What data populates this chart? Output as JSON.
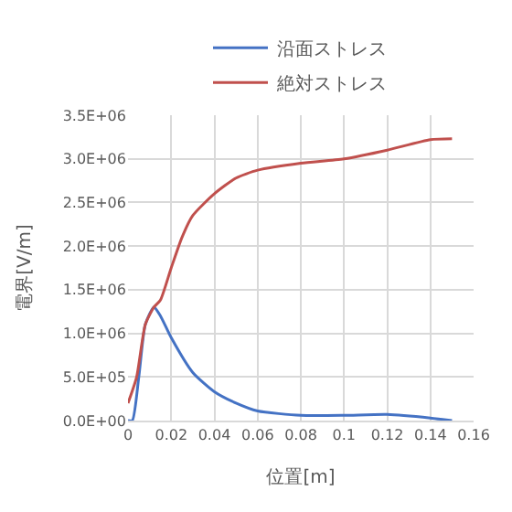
{
  "chart_data": {
    "type": "line",
    "xlabel": "位置[m]",
    "ylabel": "電界[V/m]",
    "legend": "top",
    "grid": true,
    "marker": "none",
    "line_style": "solid",
    "xlim": [
      0,
      0.16
    ],
    "xticks": [
      0,
      0.02,
      0.04,
      0.06,
      0.08,
      0.1,
      0.12,
      0.14,
      0.16
    ],
    "ylim": [
      0,
      3500000
    ],
    "yticks": [
      {
        "value": 0,
        "label": "0.0E+00"
      },
      {
        "value": 500000,
        "label": "5.0E+05"
      },
      {
        "value": 1000000,
        "label": "1.0E+06"
      },
      {
        "value": 1500000,
        "label": "1.5E+06"
      },
      {
        "value": 2000000,
        "label": "2.0E+06"
      },
      {
        "value": 2500000,
        "label": "2.5E+06"
      },
      {
        "value": 3000000,
        "label": "3.0E+06"
      },
      {
        "value": 3500000,
        "label": "3.5E+06"
      }
    ],
    "series": [
      {
        "name": "沿面ストレス",
        "color": "#4472c4",
        "x": [
          0,
          0.002,
          0.005,
          0.008,
          0.012,
          0.015,
          0.02,
          0.03,
          0.04,
          0.05,
          0.06,
          0.08,
          0.1,
          0.12,
          0.14,
          0.15
        ],
        "values": [
          0,
          0,
          500000,
          1100000,
          1300000,
          1200000,
          950000,
          550000,
          330000,
          200000,
          110000,
          60000,
          60000,
          70000,
          30000,
          0
        ]
      },
      {
        "name": "絶対ストレス",
        "color": "#c0504d",
        "x": [
          0,
          0.004,
          0.008,
          0.012,
          0.015,
          0.02,
          0.025,
          0.03,
          0.04,
          0.05,
          0.06,
          0.08,
          0.1,
          0.12,
          0.14,
          0.15
        ],
        "values": [
          200000,
          500000,
          1100000,
          1300000,
          1380000,
          1750000,
          2100000,
          2350000,
          2600000,
          2780000,
          2870000,
          2950000,
          3000000,
          3100000,
          3220000,
          3230000
        ]
      }
    ]
  }
}
